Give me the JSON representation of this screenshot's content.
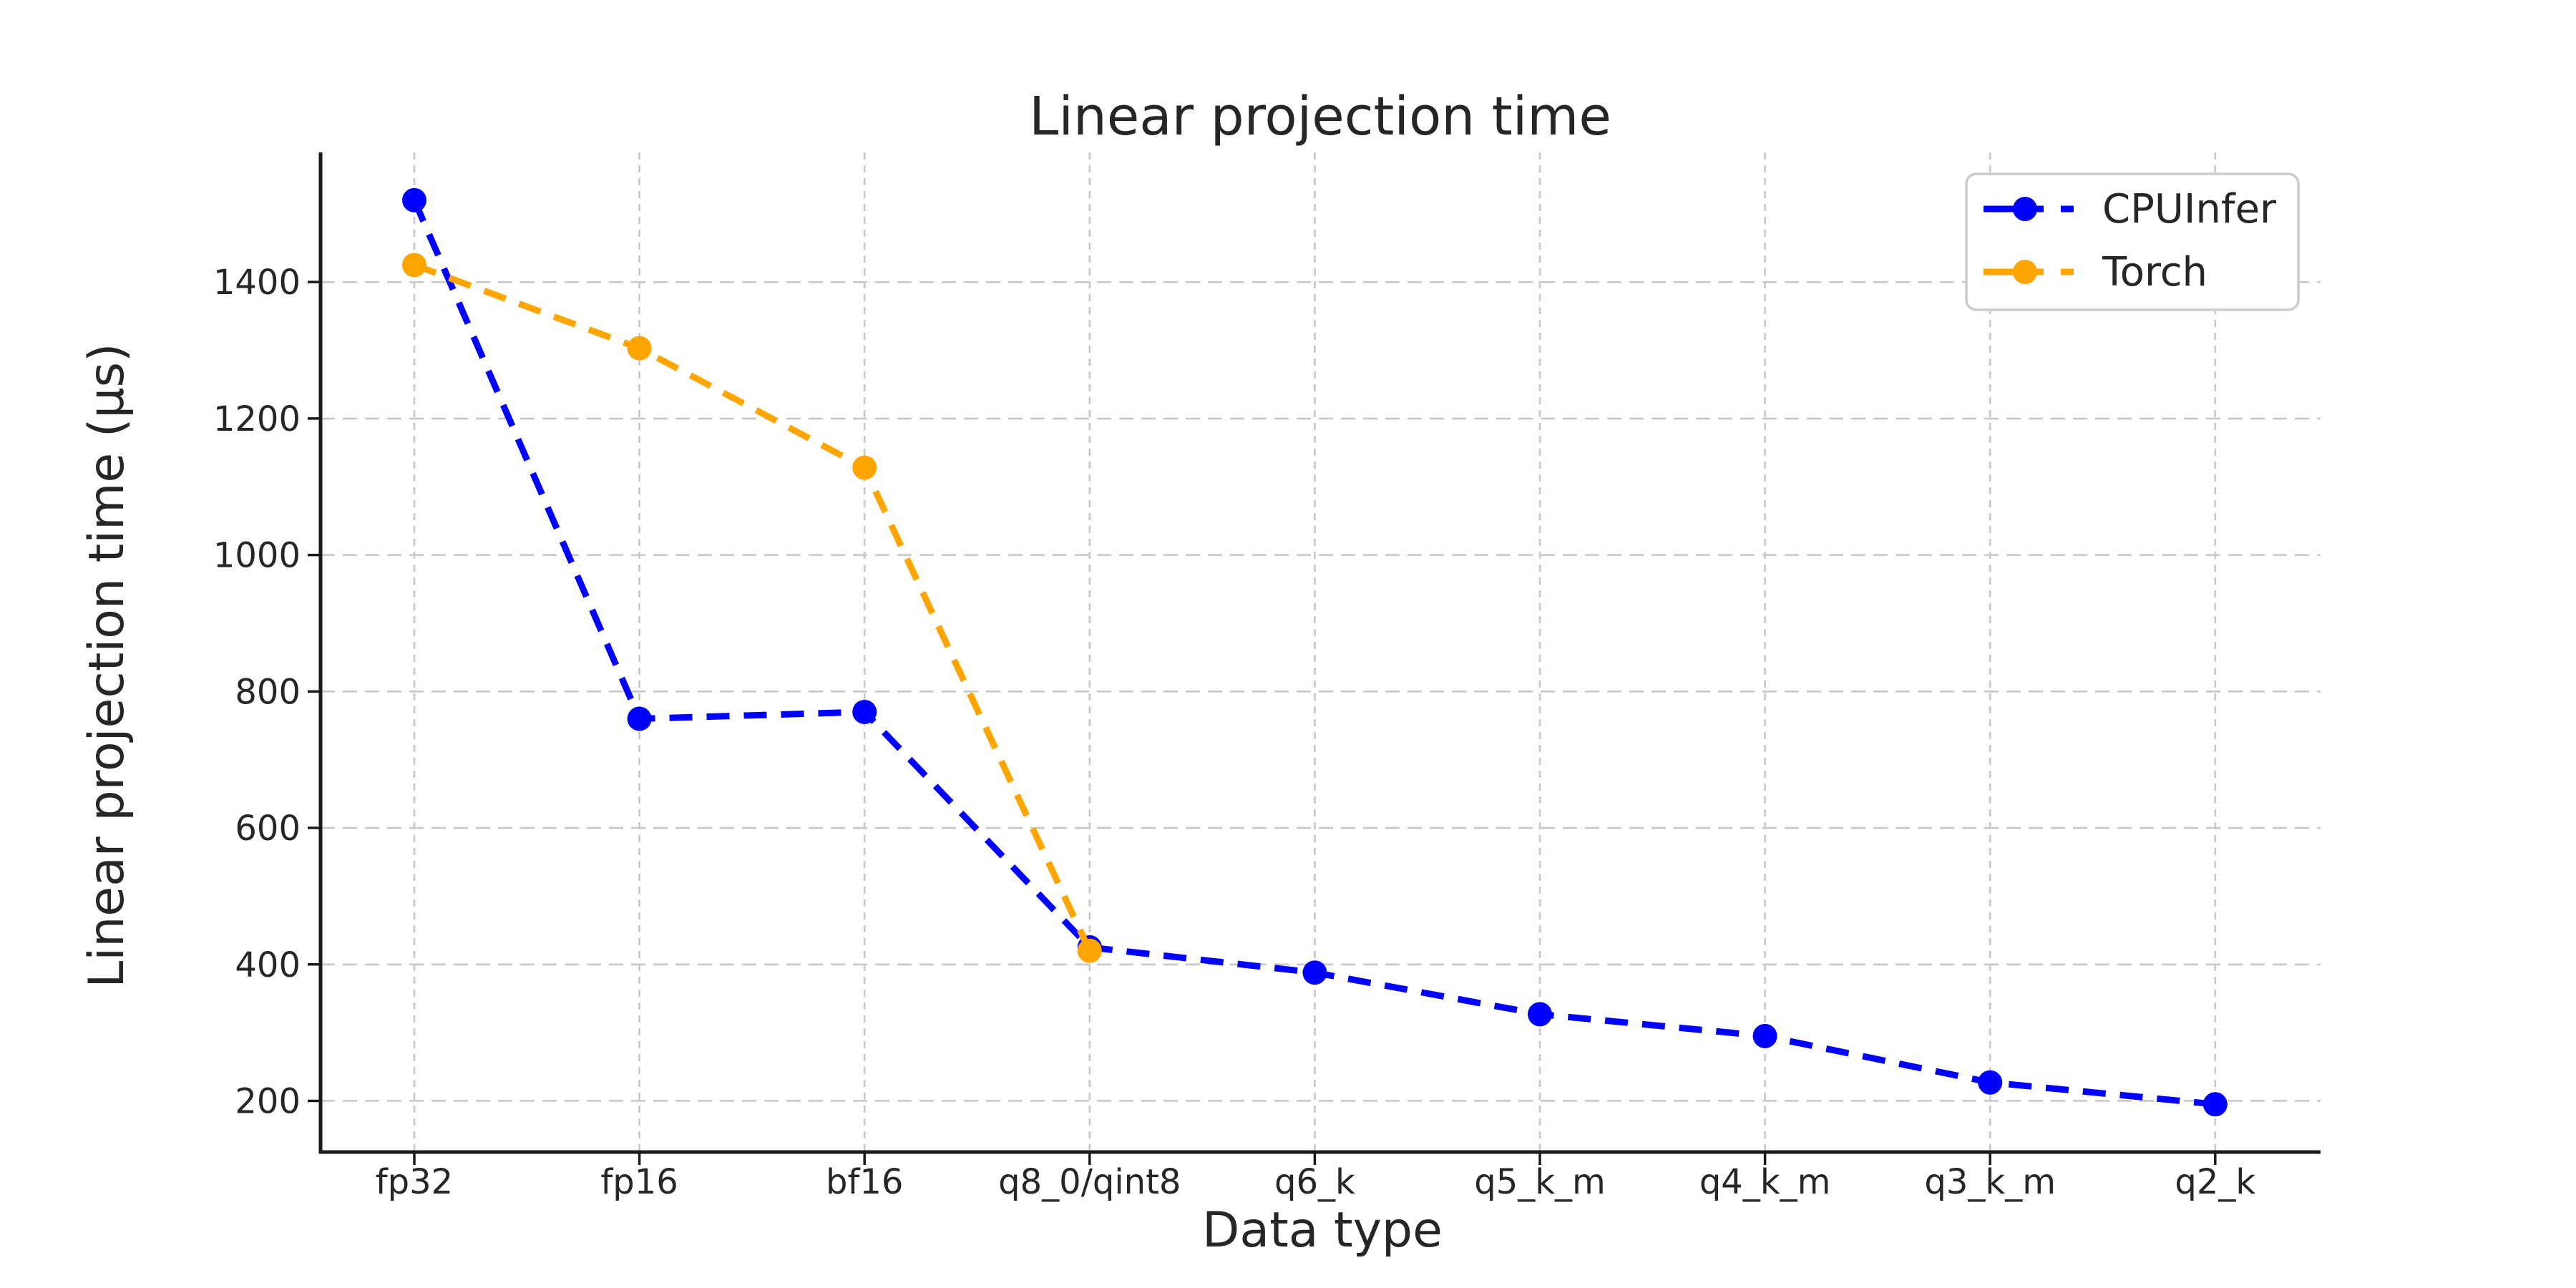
{
  "chart_data": {
    "type": "line",
    "title": "Linear projection time",
    "xlabel": "Data type",
    "ylabel": "Linear projection time (µs)",
    "categories": [
      "fp32",
      "fp16",
      "bf16",
      "q8_0/qint8",
      "q6_k",
      "q5_k_m",
      "q4_k_m",
      "q3_k_m",
      "q2_k"
    ],
    "series": [
      {
        "name": "CPUInfer",
        "color": "#0000ff",
        "linestyle": "dashed",
        "marker": "circle",
        "values": [
          1520,
          760,
          770,
          425,
          388,
          327,
          295,
          227,
          195
        ]
      },
      {
        "name": "Torch",
        "color": "#ffa500",
        "linestyle": "dashed",
        "marker": "circle",
        "values": [
          1425,
          1303,
          1128,
          420,
          null,
          null,
          null,
          null,
          null
        ]
      }
    ],
    "yticks": [
      200,
      400,
      600,
      800,
      1000,
      1200,
      1400
    ],
    "ylim": [
      125,
      1590
    ],
    "grid": true,
    "legend_position": "upper right",
    "colors": {
      "axis": "#1a1a1a",
      "grid": "#c8c8c8",
      "text": "#262626",
      "legend_border": "#cccccc",
      "background": "#ffffff"
    }
  }
}
